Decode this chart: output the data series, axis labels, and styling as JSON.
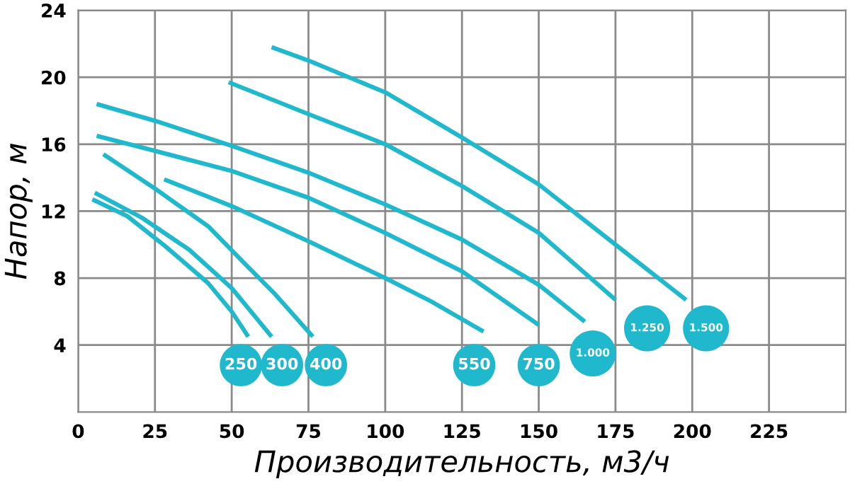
{
  "chart_data": {
    "type": "line",
    "xlabel": "Производительность, м3/ч",
    "ylabel": "Напор, м",
    "xlim": [
      0,
      250
    ],
    "xticks": [
      0,
      25,
      50,
      75,
      100,
      125,
      150,
      175,
      200,
      225
    ],
    "ylim": [
      0,
      24
    ],
    "yticks": [
      4,
      8,
      12,
      16,
      20,
      24
    ],
    "grid": true,
    "marker": "none",
    "line_style": "solid",
    "series": [
      {
        "color": "#1fb8cc",
        "x": [
          4.6,
          16,
          28.4,
          42.3,
          50,
          55.4
        ],
        "values": [
          12.7,
          11.7,
          9.9,
          7.7,
          6.0,
          4.5
        ]
      },
      {
        "color": "#1fb8cc",
        "x": [
          5.4,
          20.8,
          36.1,
          50,
          63
        ],
        "values": [
          13.1,
          11.6,
          9.7,
          7.4,
          4.5
        ]
      },
      {
        "color": "#1fb8cc",
        "x": [
          8.2,
          25.4,
          42.3,
          54.6,
          63.8,
          76.4
        ],
        "values": [
          15.4,
          13.3,
          11.1,
          8.8,
          7.1,
          4.5
        ]
      },
      {
        "color": "#1fb8cc",
        "x": [
          28,
          50,
          75,
          100,
          115,
          132
        ],
        "values": [
          13.9,
          12.3,
          10.2,
          8.0,
          6.6,
          4.8
        ]
      },
      {
        "color": "#1fb8cc",
        "x": [
          6,
          25,
          50,
          75,
          100,
          125,
          150
        ],
        "values": [
          16.5,
          15.6,
          14.4,
          12.8,
          10.7,
          8.4,
          5.2
        ]
      },
      {
        "color": "#1fb8cc",
        "x": [
          6,
          25,
          50,
          75,
          100,
          125,
          150,
          165
        ],
        "values": [
          18.4,
          17.4,
          15.9,
          14.3,
          12.4,
          10.3,
          7.6,
          5.4
        ]
      },
      {
        "color": "#1fb8cc",
        "x": [
          49,
          75,
          100,
          125,
          150,
          175
        ],
        "values": [
          19.7,
          17.8,
          16.0,
          13.5,
          10.7,
          6.7
        ]
      },
      {
        "color": "#1fb8cc",
        "x": [
          63,
          75,
          100,
          125,
          150,
          175,
          198
        ],
        "values": [
          21.8,
          21.0,
          19.1,
          16.4,
          13.6,
          10.0,
          6.7
        ]
      }
    ],
    "annotations": [
      {
        "text": "250",
        "x": 53,
        "y": 2.8
      },
      {
        "text": "300",
        "x": 66.4,
        "y": 2.8
      },
      {
        "text": "400",
        "x": 80.7,
        "y": 2.8
      },
      {
        "text": "550",
        "x": 129,
        "y": 2.8
      },
      {
        "text": "750",
        "x": 150,
        "y": 2.8
      },
      {
        "text": "1.000",
        "x": 167.6,
        "y": 3.5
      },
      {
        "text": "1.250",
        "x": 185.3,
        "y": 5.0
      },
      {
        "text": "1.500",
        "x": 204.5,
        "y": 5.0
      }
    ]
  }
}
